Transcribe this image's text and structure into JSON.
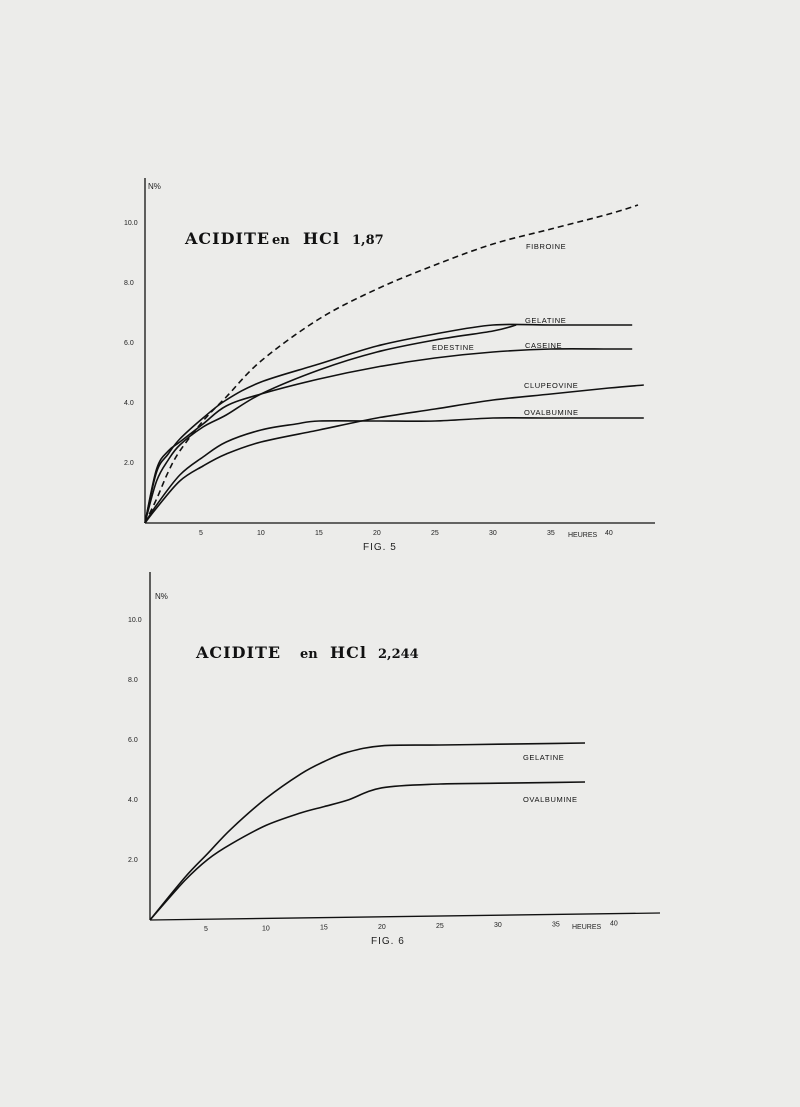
{
  "chart_data": [
    {
      "type": "line",
      "title": "ACIDITE en HCl 1,87",
      "title_parts": {
        "word1": "ACIDITE",
        "word2": "en",
        "word3": "HCl",
        "value": "1,87"
      },
      "figure_label": "FIG. 5",
      "ylabel": "N%",
      "xlabel": "HEURES",
      "xlim": [
        0,
        44
      ],
      "ylim": [
        0,
        115
      ],
      "x_ticks": [
        5,
        10,
        15,
        20,
        25,
        30,
        35,
        40
      ],
      "y_ticks": [
        {
          "value": 20,
          "label": "2.0"
        },
        {
          "value": 40,
          "label": "4.0"
        },
        {
          "value": 60,
          "label": "6.0"
        },
        {
          "value": 80,
          "label": "8.0"
        },
        {
          "value": 100,
          "label": "10.0"
        }
      ],
      "legend": "labels-on-curves",
      "series": [
        {
          "name": "FIBROINE",
          "style": "dashed",
          "x": [
            0,
            1,
            2,
            3,
            5,
            7,
            10,
            15,
            20,
            25,
            30,
            35,
            40,
            42.5
          ],
          "y": [
            0,
            8,
            17,
            24,
            34,
            42,
            54,
            68,
            78,
            86,
            93,
            98,
            103,
            106
          ]
        },
        {
          "name": "GELATINE",
          "x": [
            0,
            1,
            2,
            3,
            5,
            7,
            10,
            15,
            20,
            25,
            30,
            35,
            40,
            42
          ],
          "y": [
            0,
            17,
            23,
            28,
            35,
            41,
            47,
            53,
            59,
            63,
            66,
            66,
            66,
            66
          ]
        },
        {
          "name": "EDESTINE",
          "x": [
            0,
            1,
            2,
            3,
            5,
            7,
            10,
            15,
            20,
            25,
            30,
            32
          ],
          "y": [
            0,
            14,
            21,
            26,
            32,
            36,
            43,
            51,
            57,
            61,
            64,
            66
          ]
        },
        {
          "name": "CASEINE",
          "x": [
            0,
            1,
            2,
            3,
            5,
            7,
            10,
            15,
            20,
            25,
            30,
            35,
            40,
            42
          ],
          "y": [
            0,
            18,
            24,
            27,
            33,
            39,
            43,
            48,
            52,
            55,
            57,
            58,
            58,
            58
          ]
        },
        {
          "name": "CLUPEOVINE",
          "x": [
            0,
            1,
            3,
            5,
            7,
            10,
            15,
            20,
            25,
            30,
            35,
            40,
            43
          ],
          "y": [
            0,
            5,
            14,
            19,
            23,
            27,
            31,
            35,
            38,
            41,
            43,
            45,
            46
          ]
        },
        {
          "name": "OVALBUMINE",
          "x": [
            0,
            1,
            3,
            5,
            7,
            10,
            13,
            15,
            20,
            25,
            30,
            35,
            40,
            43
          ],
          "y": [
            0,
            6,
            16,
            22,
            27,
            31,
            33,
            34,
            34,
            34,
            35,
            35,
            35,
            35
          ]
        }
      ]
    },
    {
      "type": "line",
      "title": "ACIDITE en HCl 2,244",
      "title_parts": {
        "word1": "ACIDITE",
        "word2": "en",
        "word3": "HCl",
        "value": "2,244"
      },
      "figure_label": "FIG. 6",
      "ylabel": "N%",
      "xlabel": "HEURES",
      "xlim": [
        0,
        44
      ],
      "ylim": [
        0,
        115
      ],
      "x_ticks": [
        5,
        10,
        15,
        20,
        25,
        30,
        35,
        40
      ],
      "y_ticks": [
        {
          "value": 20,
          "label": "2.0"
        },
        {
          "value": 40,
          "label": "4.0"
        },
        {
          "value": 60,
          "label": "6.0"
        },
        {
          "value": 80,
          "label": "8.0"
        },
        {
          "value": 100,
          "label": "10.0"
        }
      ],
      "legend": "labels-on-curves",
      "series": [
        {
          "name": "GELATINE",
          "x": [
            0,
            3,
            5,
            7,
            10,
            13,
            15,
            17,
            20,
            25,
            30,
            35,
            37.5
          ],
          "y": [
            0,
            14,
            22,
            30,
            40,
            48,
            52,
            55,
            57,
            57,
            57,
            57,
            57
          ]
        },
        {
          "name": "OVALBUMINE",
          "x": [
            0,
            3,
            5,
            7,
            10,
            13,
            15,
            17,
            20,
            25,
            30,
            35,
            37.5
          ],
          "y": [
            0,
            13,
            20,
            25,
            31,
            35,
            37,
            39,
            43,
            44,
            44,
            44,
            44
          ]
        }
      ]
    }
  ]
}
